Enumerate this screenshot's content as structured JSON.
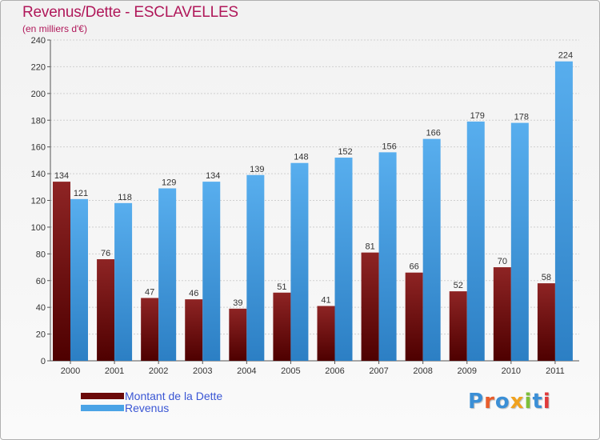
{
  "header": {
    "title": "Revenus/Dette - ESCLAVELLES",
    "subtitle": "(en milliers d'€)"
  },
  "logo": {
    "text": "Proxiti",
    "colors": [
      "#3b8fd6",
      "#e85c2a",
      "#3b8fd6",
      "#f0a21e",
      "#7cbf3a",
      "#3b8fd6",
      "#e03a3a"
    ]
  },
  "chart_data": {
    "type": "bar",
    "title": "Revenus/Dette - ESCLAVELLES",
    "subtitle": "(en milliers d'€)",
    "categories": [
      "2000",
      "2001",
      "2002",
      "2003",
      "2004",
      "2005",
      "2006",
      "2007",
      "2008",
      "2009",
      "2010",
      "2011"
    ],
    "series": [
      {
        "name": "Montant de la Dette",
        "color": "#6b0a0a",
        "values": [
          134,
          76,
          47,
          46,
          39,
          51,
          41,
          81,
          66,
          52,
          70,
          58
        ]
      },
      {
        "name": "Revenus",
        "color": "#4aa3e6",
        "values": [
          121,
          118,
          129,
          134,
          139,
          148,
          152,
          156,
          166,
          179,
          178,
          224
        ]
      }
    ],
    "ylim": [
      0,
      240
    ],
    "yticks": [
      "0",
      "20",
      "40",
      "60",
      "80",
      "100",
      "120",
      "140",
      "160",
      "180",
      "200",
      "220",
      "240"
    ],
    "grid": true,
    "legend_position": "bottom-left"
  }
}
